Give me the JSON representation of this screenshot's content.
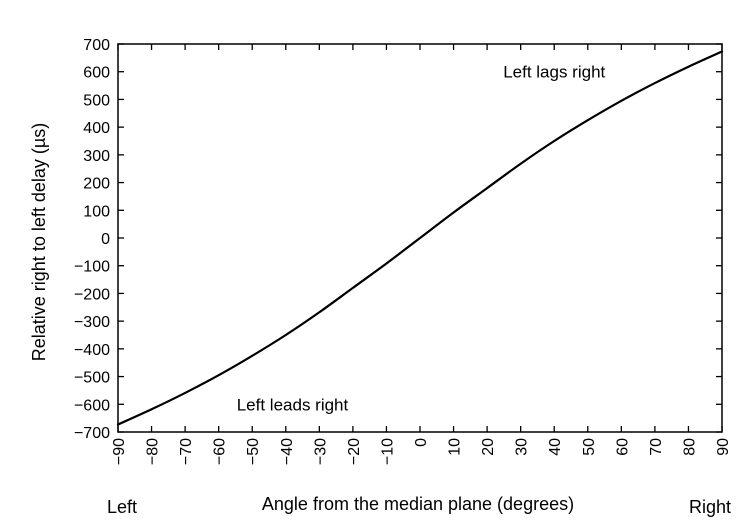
{
  "chart_data": {
    "type": "line",
    "title": "",
    "xlabel": "Angle from the median plane (degrees)",
    "ylabel": "Relative right to left delay (µs)",
    "xlim": [
      -90,
      90
    ],
    "ylim": [
      -700,
      700
    ],
    "x_ticks": [
      -90,
      -80,
      -70,
      -60,
      -50,
      -40,
      -30,
      -20,
      -10,
      0,
      10,
      20,
      30,
      40,
      50,
      60,
      70,
      80,
      90
    ],
    "y_ticks": [
      700,
      600,
      500,
      400,
      300,
      200,
      100,
      0,
      -100,
      -200,
      -300,
      -400,
      -500,
      -600,
      -700
    ],
    "x_tick_labels": [
      "−90",
      "−80",
      "−70",
      "−60",
      "−50",
      "−40",
      "−30",
      "−20",
      "−10",
      "0",
      "10",
      "20",
      "30",
      "40",
      "50",
      "60",
      "70",
      "80",
      "90"
    ],
    "y_tick_labels": [
      "700",
      "600",
      "500",
      "400",
      "300",
      "200",
      "100",
      "0",
      "−100",
      "−200",
      "−300",
      "−400",
      "−500",
      "−600",
      "−700"
    ],
    "grid": false,
    "series": [
      {
        "x": [
          -90,
          -80,
          -70,
          -60,
          -50,
          -40,
          -30,
          -20,
          -10,
          0,
          10,
          20,
          30,
          40,
          50,
          60,
          70,
          80,
          90
        ],
        "values": [
          -673,
          -618,
          -559,
          -495,
          -425,
          -350,
          -268,
          -180,
          -92,
          0,
          92,
          180,
          268,
          350,
          425,
          495,
          559,
          618,
          673
        ]
      }
    ],
    "annotations": [
      {
        "text": "Left lags right",
        "x": 40,
        "y": 600
      },
      {
        "text": "Left leads right",
        "x": -38,
        "y": -600
      }
    ],
    "side_labels": {
      "left": "Left",
      "right": "Right"
    }
  }
}
